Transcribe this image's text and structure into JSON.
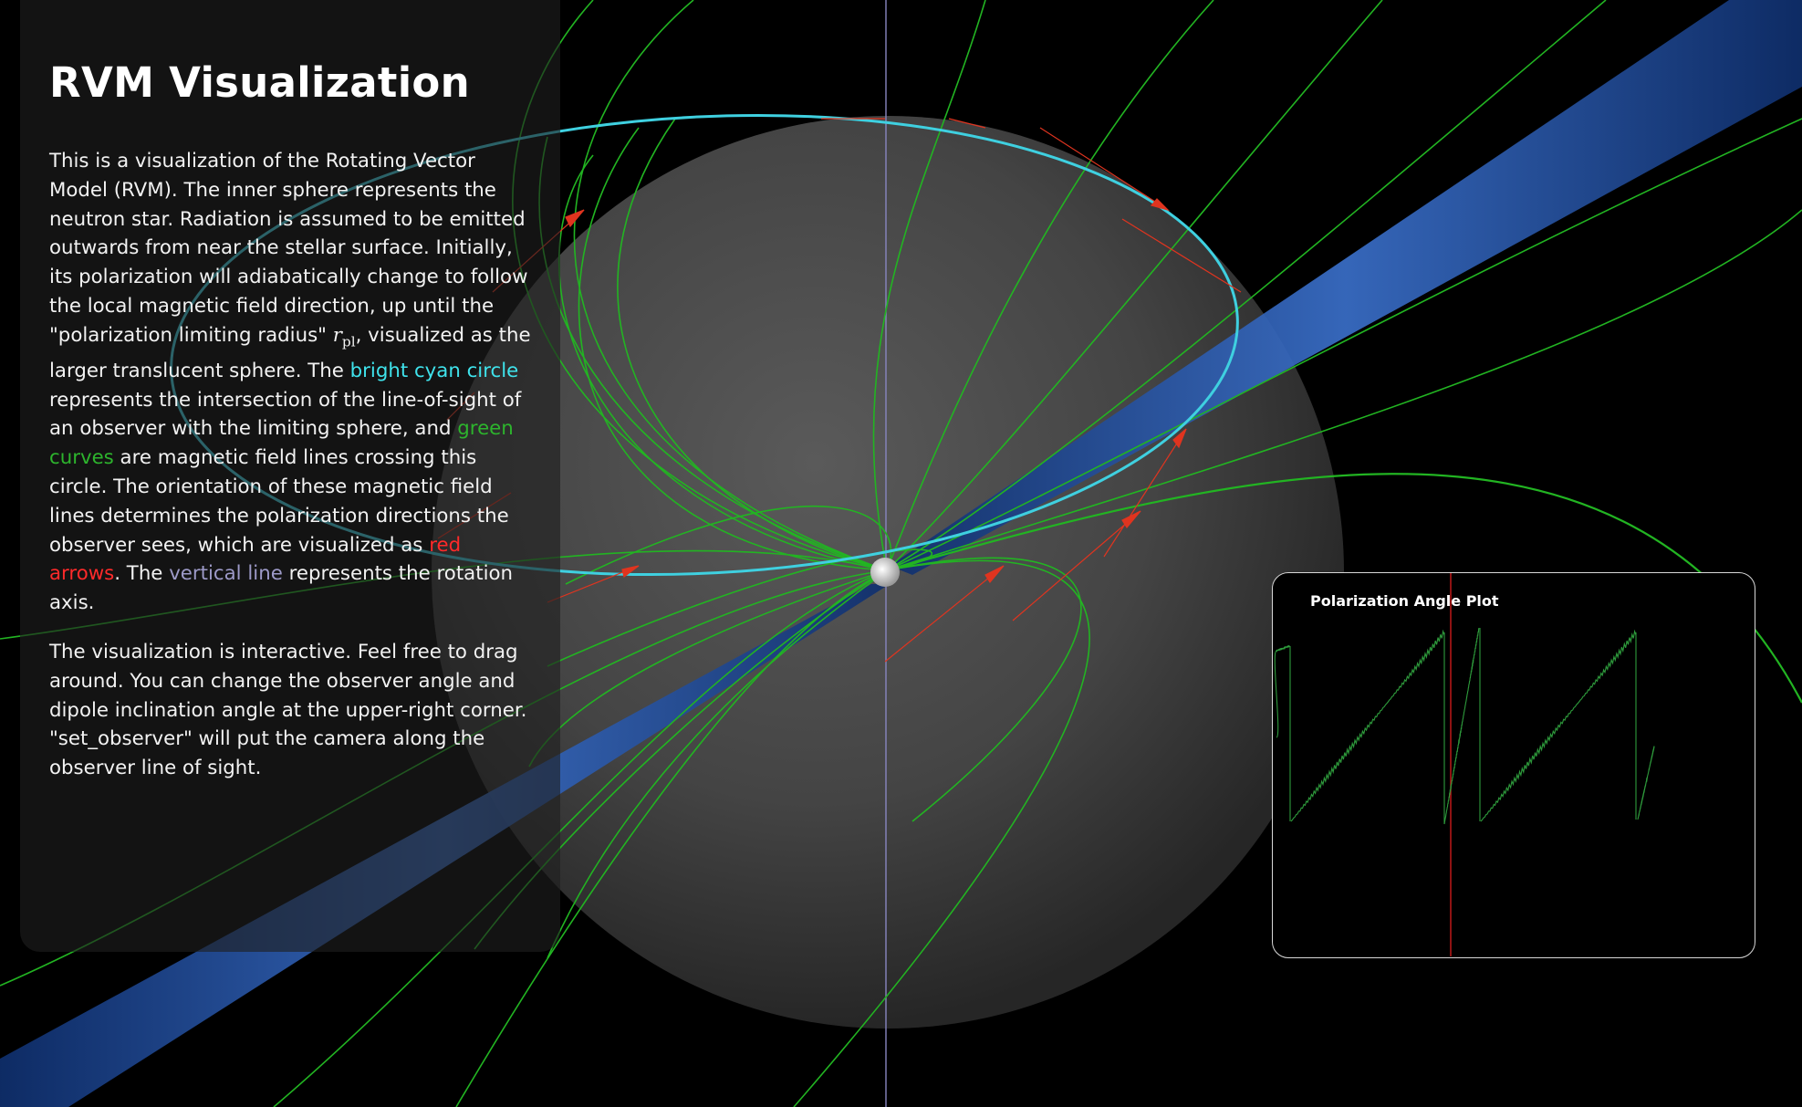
{
  "panel": {
    "title": "RVM Visualization",
    "p1": {
      "a": "This is a visualization of the Rotating Vector Model (RVM). The inner sphere represents the neutron star. Radiation is assumed to be emitted outwards from near the stellar surface. Initially, its polarization will adiabatically change to follow the local magnetic field direction, up until the \"polarization limiting radius\" ",
      "math_symbol": "r",
      "math_sub": "pl",
      "b": ", visualized as the larger translucent sphere. The ",
      "cyan_text": "bright cyan circle",
      "c": " represents the intersection of the line-of-sight of an observer with the limiting sphere, and ",
      "green_text": "green curves",
      "d": " are magnetic field lines crossing this circle. The orientation of these magnetic field lines determines the polarization directions the observer sees, which are visualized as ",
      "red_text": "red arrows",
      "e": ". The ",
      "violet_text": "vertical line",
      "f": " represents the rotation axis."
    },
    "p2": "The visualization is interactive. Feel free to drag around. You can change the observer angle and dipole inclination angle at the upper-right corner. \"set_observer\" will put the camera along the observer line of sight."
  },
  "plot": {
    "title": "Polarization Angle Plot",
    "marker_color": "#cc1a1a",
    "curve_color": "#2e9b3c"
  },
  "scene": {
    "field_line_color": "#22b422",
    "circle_color": "#3fd0e0",
    "arrow_color": "#e0341f",
    "axis_color": "#8886c0",
    "beam_color": "#1d4d9e"
  }
}
